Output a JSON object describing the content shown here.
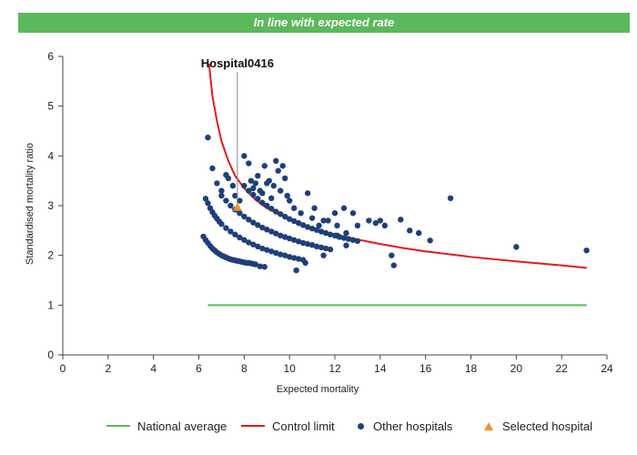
{
  "banner": {
    "text": "In line with expected rate",
    "color": "#5cb85c"
  },
  "colors": {
    "national_average": "#5cb85c",
    "control_limit": "#e31a1c",
    "other_hospitals": "#1f3f7a",
    "selected_hospital": "#f0932b"
  },
  "chart_data": {
    "type": "scatter",
    "xlabel": "Expected mortality",
    "ylabel": "Standardised mortality ratio",
    "xlim": [
      0,
      24
    ],
    "ylim": [
      0,
      6
    ],
    "x_ticks": [
      "0",
      "2",
      "4",
      "6",
      "8",
      "10",
      "12",
      "14",
      "16",
      "18",
      "20",
      "22",
      "24"
    ],
    "y_ticks": [
      "0",
      "1",
      "2",
      "3",
      "4",
      "5",
      "6"
    ],
    "grid": false,
    "legend_position": "bottom",
    "legend": [
      "National average",
      "Control limit",
      "Other hospitals",
      "Selected hospital"
    ],
    "annotation": {
      "label": "Hospital0416",
      "x": 7.7,
      "y": 2.97
    },
    "series": [
      {
        "name": "National average",
        "kind": "line",
        "x": [
          6.4,
          23.1
        ],
        "y": [
          1.0,
          1.0
        ]
      },
      {
        "name": "Control limit",
        "kind": "line",
        "x": [
          6.45,
          6.6,
          6.8,
          7.0,
          7.3,
          7.6,
          8.0,
          8.5,
          9.0,
          10.0,
          11.0,
          12.0,
          13.0,
          14.0,
          15.0,
          16.0,
          18.0,
          20.0,
          22.0,
          23.1
        ],
        "y": [
          5.85,
          5.2,
          4.7,
          4.3,
          3.9,
          3.6,
          3.35,
          3.12,
          2.95,
          2.72,
          2.55,
          2.42,
          2.32,
          2.23,
          2.15,
          2.08,
          1.97,
          1.88,
          1.8,
          1.75
        ]
      },
      {
        "name": "Other hospitals",
        "kind": "scatter",
        "x": [
          6.2,
          6.3,
          6.4,
          6.5,
          6.6,
          6.7,
          6.8,
          6.9,
          7.0,
          7.1,
          7.2,
          7.3,
          7.4,
          7.5,
          7.6,
          7.7,
          7.8,
          7.9,
          8.0,
          8.1,
          8.2,
          8.3,
          8.4,
          8.5,
          8.7,
          8.9,
          6.3,
          6.4,
          6.5,
          6.6,
          6.7,
          6.8,
          6.9,
          7.0,
          7.2,
          7.4,
          7.6,
          7.8,
          8.0,
          8.2,
          8.4,
          8.6,
          8.8,
          9.0,
          9.2,
          9.4,
          9.6,
          9.8,
          10.0,
          10.2,
          10.4,
          10.6,
          7.0,
          7.2,
          7.4,
          7.6,
          7.8,
          8.0,
          8.2,
          8.4,
          8.6,
          8.8,
          9.0,
          9.2,
          9.4,
          9.6,
          9.8,
          10.0,
          10.2,
          10.4,
          10.6,
          10.8,
          11.0,
          11.2,
          11.4,
          11.6,
          11.8,
          8.0,
          8.2,
          8.4,
          8.6,
          8.8,
          9.0,
          9.2,
          9.4,
          9.6,
          9.8,
          10.0,
          10.2,
          10.4,
          10.6,
          10.8,
          11.0,
          11.2,
          11.4,
          11.6,
          11.8,
          12.0,
          12.2,
          12.4,
          12.6,
          12.8,
          13.0,
          6.4,
          6.6,
          6.8,
          7.0,
          7.2,
          7.3,
          7.5,
          7.6,
          7.8,
          8.0,
          8.2,
          8.3,
          8.4,
          8.5,
          8.6,
          8.7,
          8.8,
          8.9,
          9.0,
          9.1,
          9.2,
          9.3,
          9.4,
          9.5,
          9.6,
          9.7,
          9.8,
          9.9,
          10.0,
          10.2,
          10.5,
          11.0,
          11.5,
          10.7,
          10.3,
          10.8,
          11.1,
          11.3,
          11.7,
          12.0,
          12.1,
          12.4,
          12.5,
          12.8,
          13.0,
          13.8,
          14.0,
          14.2,
          14.5,
          14.6,
          14.9,
          15.3,
          15.7,
          16.2,
          17.1,
          20.0,
          23.1,
          12.5,
          12.1,
          11.5,
          13.5
        ],
        "y": [
          2.38,
          2.31,
          2.25,
          2.19,
          2.14,
          2.1,
          2.06,
          2.03,
          2.0,
          1.98,
          1.96,
          1.94,
          1.92,
          1.91,
          1.9,
          1.89,
          1.88,
          1.87,
          1.86,
          1.85,
          1.85,
          1.84,
          1.83,
          1.82,
          1.78,
          1.77,
          3.14,
          3.05,
          2.95,
          2.87,
          2.8,
          2.74,
          2.68,
          2.63,
          2.55,
          2.48,
          2.42,
          2.36,
          2.31,
          2.26,
          2.22,
          2.18,
          2.14,
          2.11,
          2.08,
          2.05,
          2.02,
          2.0,
          1.97,
          1.95,
          1.93,
          1.91,
          3.2,
          3.1,
          3.0,
          2.92,
          2.85,
          2.78,
          2.72,
          2.66,
          2.61,
          2.56,
          2.52,
          2.48,
          2.44,
          2.4,
          2.37,
          2.34,
          2.31,
          2.28,
          2.25,
          2.23,
          2.21,
          2.18,
          2.16,
          2.14,
          2.12,
          3.4,
          3.3,
          3.22,
          3.14,
          3.06,
          3.0,
          2.94,
          2.88,
          2.83,
          2.78,
          2.73,
          2.69,
          2.65,
          2.61,
          2.57,
          2.54,
          2.51,
          2.48,
          2.45,
          2.42,
          2.4,
          2.37,
          2.35,
          2.33,
          2.31,
          2.29,
          4.37,
          3.75,
          3.45,
          3.3,
          3.62,
          3.55,
          3.4,
          3.2,
          3.1,
          4.0,
          3.85,
          3.5,
          3.35,
          3.45,
          3.6,
          3.3,
          3.25,
          3.8,
          3.45,
          3.5,
          3.15,
          3.4,
          3.9,
          3.7,
          3.3,
          3.8,
          3.55,
          3.2,
          3.1,
          2.95,
          2.85,
          2.75,
          2.7,
          1.85,
          1.7,
          3.25,
          2.95,
          2.6,
          2.7,
          2.85,
          2.6,
          2.95,
          2.45,
          2.85,
          2.6,
          2.65,
          2.7,
          2.6,
          2.0,
          1.8,
          2.72,
          2.5,
          2.45,
          2.3,
          3.15,
          2.17,
          2.1,
          2.2,
          2.4,
          2.0,
          2.7
        ]
      },
      {
        "name": "Selected hospital",
        "kind": "marker",
        "x": [
          7.7
        ],
        "y": [
          2.97
        ]
      }
    ]
  }
}
